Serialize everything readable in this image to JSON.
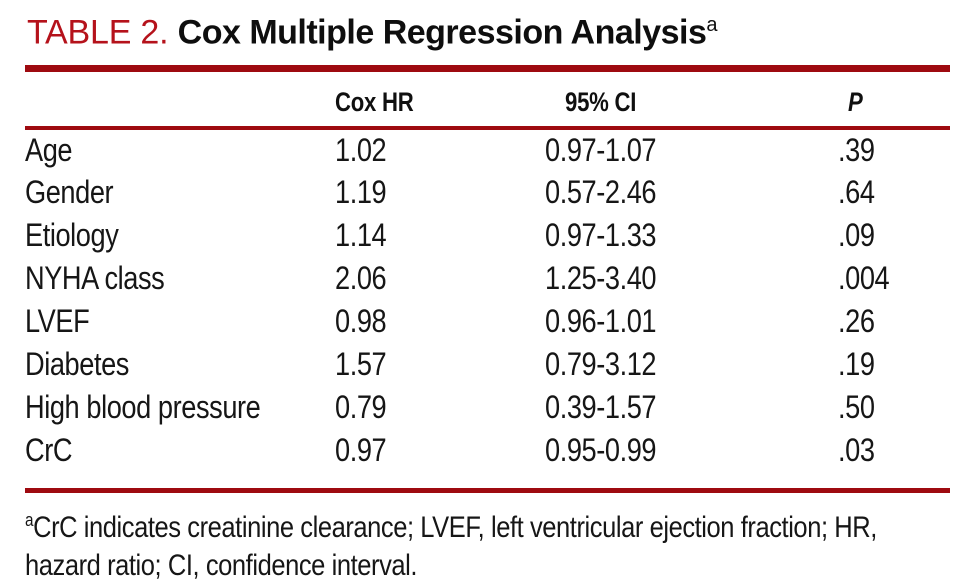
{
  "title": {
    "label": "TABLE 2.",
    "text": "Cox Multiple Regression Analysis",
    "superscript": "a"
  },
  "table": {
    "headers": {
      "variable": "",
      "cox_hr": "Cox HR",
      "ci_95": "95% CI",
      "p": "P"
    },
    "rows": [
      {
        "variable": "Age",
        "cox_hr": "1.02",
        "ci_95": "0.97-1.07",
        "p": ".39"
      },
      {
        "variable": "Gender",
        "cox_hr": "1.19",
        "ci_95": "0.57-2.46",
        "p": ".64"
      },
      {
        "variable": "Etiology",
        "cox_hr": "1.14",
        "ci_95": "0.97-1.33",
        "p": ".09"
      },
      {
        "variable": "NYHA class",
        "cox_hr": "2.06",
        "ci_95": "1.25-3.40",
        "p": ".004"
      },
      {
        "variable": "LVEF",
        "cox_hr": "0.98",
        "ci_95": "0.96-1.01",
        "p": ".26"
      },
      {
        "variable": "Diabetes",
        "cox_hr": "1.57",
        "ci_95": "0.79-3.12",
        "p": ".19"
      },
      {
        "variable": "High blood pressure",
        "cox_hr": "0.79",
        "ci_95": "0.39-1.57",
        "p": ".50"
      },
      {
        "variable": "CrC",
        "cox_hr": "0.97",
        "ci_95": "0.95-0.99",
        "p": ".03"
      }
    ]
  },
  "footnote": {
    "superscript": "a",
    "line1": "CrC indicates creatinine clearance; LVEF, left ventricular ejection fraction; HR,",
    "line2": "hazard ratio; CI, confidence interval."
  },
  "colors": {
    "title_red": "#b5121b",
    "rule_red": "#9e0a10",
    "text": "#161616"
  }
}
